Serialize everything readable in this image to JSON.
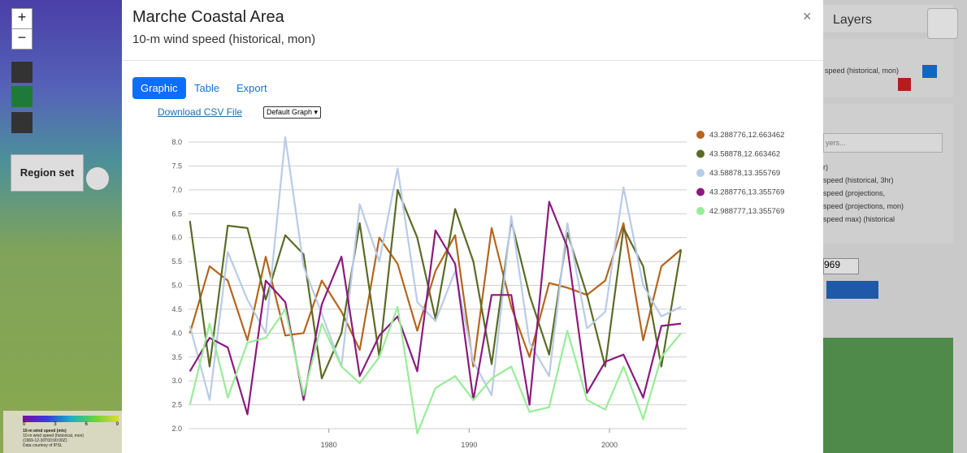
{
  "map": {
    "zoom_in": "+",
    "zoom_out": "−",
    "region_button": "Region set",
    "legend_ticks": [
      "0",
      "3",
      "6",
      "9"
    ],
    "legend_title": "10-m wind speed (m/s)",
    "legend_sub": "10-m wind speed (historical, mon)",
    "legend_date": "(1969-12-30T00:00:00Z)",
    "legend_credit": "Data courtesy of IPSL"
  },
  "modal": {
    "title": "Marche Coastal Area",
    "subtitle": "10-m wind speed (historical, mon)",
    "close": "×",
    "tabs": [
      "Graphic",
      "Table",
      "Export"
    ],
    "download": "Download CSV File",
    "graph_select": "Default Graph"
  },
  "layers": {
    "title": "Layers",
    "active_layer": "speed (historical, mon)",
    "search": "yers...",
    "items": [
      "r)",
      "speed (historical, 3hr)",
      "speed (projections,",
      "speed (projections, mon)",
      "speed max) (historical"
    ],
    "date": "969"
  },
  "chart_data": {
    "type": "line",
    "x": [
      1970.1,
      1971.5,
      1972.8,
      1974.2,
      1975.5,
      1976.9,
      1978.2,
      1979.5,
      1980.9,
      1982.2,
      1983.6,
      1984.9,
      1986.3,
      1987.6,
      1989.0,
      1990.3,
      1991.6,
      1993.0,
      1994.3,
      1995.7,
      1997.0,
      1998.4,
      1999.7,
      2001.0,
      2002.4,
      2003.7,
      2005.1
    ],
    "series": [
      {
        "name": "43.288776,12.663462",
        "color": "#b5651d",
        "values": [
          4.0,
          5.4,
          5.1,
          3.85,
          5.6,
          3.95,
          4.0,
          5.1,
          4.45,
          3.65,
          6.0,
          5.45,
          4.05,
          5.3,
          6.05,
          3.3,
          6.2,
          4.55,
          3.5,
          5.05,
          4.95,
          4.8,
          5.1,
          6.3,
          3.85,
          5.4,
          5.75
        ]
      },
      {
        "name": "43.58878,12.663462",
        "color": "#5b6b26",
        "values": [
          6.35,
          3.3,
          6.25,
          6.2,
          4.7,
          6.05,
          5.65,
          3.05,
          4.0,
          6.3,
          3.5,
          7.0,
          6.0,
          4.3,
          6.6,
          5.5,
          3.35,
          6.35,
          4.8,
          3.55,
          6.1,
          4.8,
          3.3,
          6.2,
          5.4,
          3.3,
          5.75
        ]
      },
      {
        "name": "43.58878,13.355769",
        "color": "#b8cbe8",
        "values": [
          4.15,
          2.6,
          5.7,
          4.7,
          4.0,
          8.1,
          5.4,
          4.4,
          3.3,
          6.7,
          5.5,
          7.45,
          4.65,
          4.25,
          5.3,
          3.4,
          2.7,
          6.45,
          3.8,
          3.1,
          6.3,
          4.1,
          4.45,
          7.05,
          5.0,
          4.35,
          4.55
        ]
      },
      {
        "name": "43.288776,13.355769",
        "color": "#8b1a7e",
        "values": [
          3.2,
          3.9,
          3.7,
          2.3,
          5.1,
          4.65,
          2.6,
          4.6,
          5.6,
          3.1,
          3.95,
          4.35,
          3.2,
          6.15,
          5.45,
          2.6,
          4.8,
          4.8,
          2.5,
          6.75,
          5.8,
          2.75,
          3.4,
          3.55,
          2.65,
          4.15,
          4.2
        ]
      },
      {
        "name": "42.988777,13.355769",
        "color": "#98ec98",
        "values": [
          2.5,
          4.2,
          2.65,
          3.8,
          3.9,
          4.5,
          2.7,
          4.2,
          3.3,
          2.95,
          3.5,
          4.55,
          1.9,
          2.85,
          3.1,
          2.6,
          3.05,
          3.3,
          2.35,
          2.45,
          4.05,
          2.6,
          2.4,
          3.3,
          2.2,
          3.5,
          4.0
        ]
      }
    ],
    "xlim": [
      1970.0,
      2005.5
    ],
    "xticks": [
      1980,
      1990,
      2000
    ],
    "ylim": [
      2,
      8
    ],
    "yticks": [
      {
        "value": 2,
        "label": "2.0"
      },
      {
        "value": 2.5,
        "label": "2.5"
      },
      {
        "value": 3,
        "label": "3.0"
      },
      {
        "value": 3.5,
        "label": "3.5"
      },
      {
        "value": 4,
        "label": "4.0"
      },
      {
        "value": 4.5,
        "label": "4.5"
      },
      {
        "value": 5,
        "label": "5.0"
      },
      {
        "value": 5.5,
        "label": "5.5"
      },
      {
        "value": 6,
        "label": "6.0"
      },
      {
        "value": 6.5,
        "label": "6.5"
      },
      {
        "value": 7,
        "label": "7.0"
      },
      {
        "value": 7.5,
        "label": "7.5"
      },
      {
        "value": 8,
        "label": "8.0"
      }
    ],
    "grid": true,
    "legend": "right"
  }
}
